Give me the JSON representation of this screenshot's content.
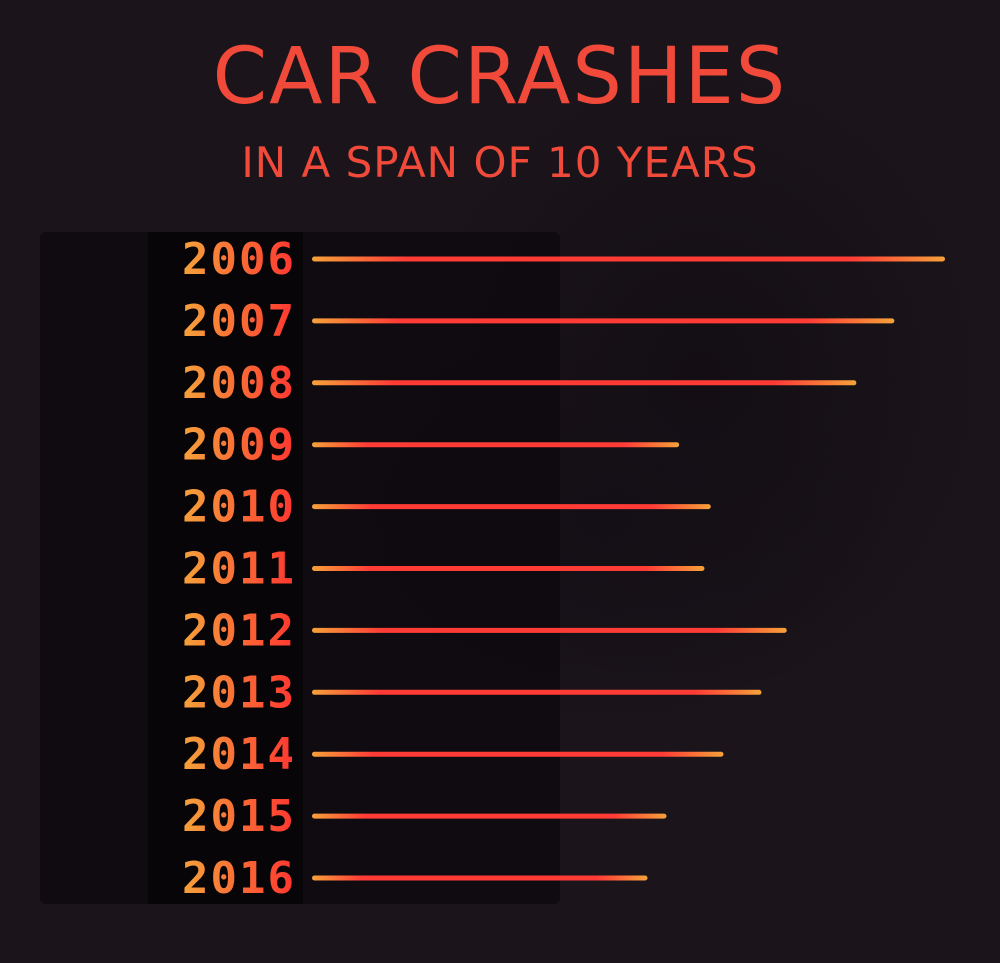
{
  "header": {
    "title": "CAR CRASHES",
    "subtitle": "IN A SPAN OF 10 YEARS"
  },
  "colors": {
    "background": "#1b151b",
    "title": "#f24a3a",
    "bar_start": "#f6a13a",
    "bar_end": "#ff3b36",
    "label_start": "#f5a23b",
    "label_end": "#ff3530"
  },
  "chart_data": {
    "type": "bar",
    "orientation": "horizontal",
    "title": "CAR CRASHES",
    "subtitle": "IN A SPAN OF 10 YEARS",
    "categories": [
      "2006",
      "2007",
      "2008",
      "2009",
      "2010",
      "2011",
      "2012",
      "2013",
      "2014",
      "2015",
      "2016"
    ],
    "values": [
      100,
      92,
      86,
      58,
      63,
      62,
      75,
      71,
      65,
      56,
      53
    ],
    "xlim": [
      0,
      100
    ],
    "grid": false,
    "axes_visible": false
  }
}
